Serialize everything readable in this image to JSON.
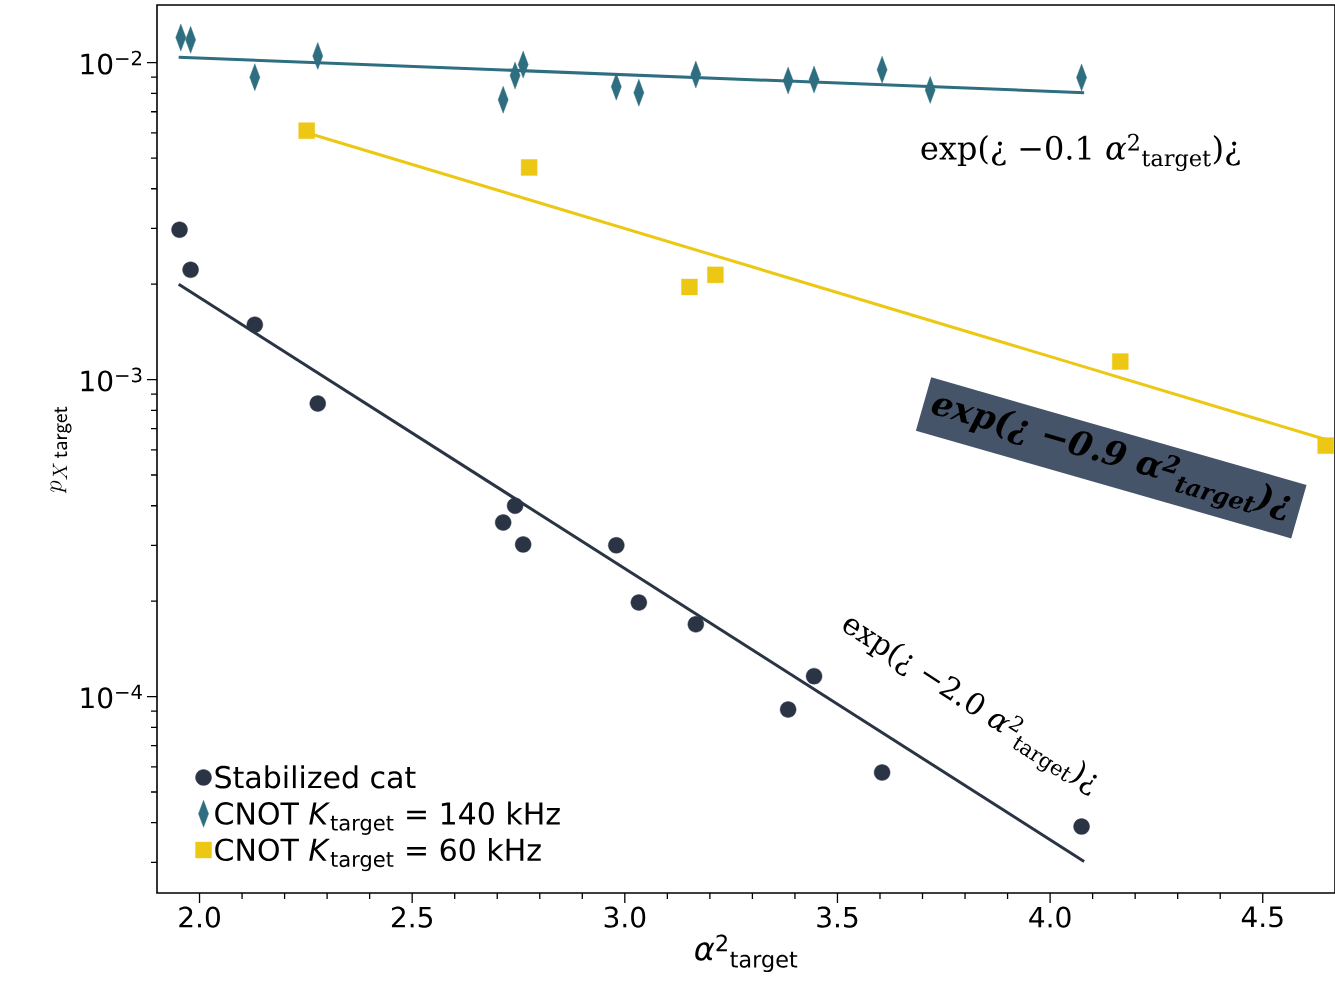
{
  "chart_data": {
    "type": "scatter",
    "xlabel": "*α*$^{2}$$_{target}$",
    "ylabel": "p_{X\\,\\mathsf{target}}",
    "log": "y",
    "legend": "bottom left",
    "xlim": [
      1.9,
      4.67
    ],
    "ylim": [
      2.4e-05,
      0.0152
    ],
    "xticks": [
      {
        "value": 2.0,
        "label": "2.0"
      },
      {
        "value": 2.5,
        "label": "2.5"
      },
      {
        "value": 3.0,
        "label": "3.0"
      },
      {
        "value": 3.5,
        "label": "3.5"
      },
      {
        "value": 4.0,
        "label": "4.0"
      },
      {
        "value": 4.5,
        "label": "4.5"
      }
    ],
    "yticks": [
      {
        "value": 0.0001,
        "label": "10$^{−4}$"
      },
      {
        "value": 0.001,
        "label": "10$^{−3}$"
      },
      {
        "value": 0.01,
        "label": "10$^{−2}$"
      }
    ],
    "series": [
      {
        "name": "Stabilized cat",
        "marker": "circle",
        "color": "#2b3445",
        "x": [
          1.953,
          1.979,
          2.13,
          2.278,
          2.714,
          2.742,
          2.761,
          2.98,
          3.033,
          3.167,
          3.384,
          3.445,
          3.605,
          4.074
        ],
        "values": [
          0.00297,
          0.00222,
          0.00149,
          0.00084,
          0.000354,
          0.0004,
          0.000302,
          0.0003,
          0.000198,
          0.000169,
          9.1e-05,
          0.000116,
          5.76e-05,
          3.89e-05
        ]
      },
      {
        "name": "CNOT *K*$_{target}$ = 140 kHz",
        "marker": "diamond",
        "color": "#2e6e80",
        "x": [
          1.956,
          1.979,
          2.13,
          2.278,
          2.714,
          2.742,
          2.761,
          2.98,
          3.033,
          3.167,
          3.384,
          3.445,
          3.605,
          3.718,
          4.074
        ],
        "values": [
          0.012,
          0.0118,
          0.009,
          0.0105,
          0.00764,
          0.0091,
          0.00986,
          0.0084,
          0.00804,
          0.00917,
          0.00878,
          0.00884,
          0.0095,
          0.0082,
          0.00897
        ]
      },
      {
        "name": "CNOT *K*$_{target}$ = 60 kHz",
        "marker": "square",
        "color": "#ecc814",
        "x": [
          2.252,
          2.775,
          3.152,
          3.213,
          4.165,
          4.648
        ],
        "values": [
          0.0061,
          0.00467,
          0.00196,
          0.00214,
          0.00114,
          0.000619
        ]
      },
      {
        "type": "line",
        "color": "#2b3445",
        "x": [
          1.951,
          4.08
        ],
        "values": [
          0.002,
          3.02e-05
        ]
      },
      {
        "type": "line",
        "color": "#2e6e80",
        "x": [
          1.951,
          4.08
        ],
        "values": [
          0.0104,
          0.00804
        ]
      },
      {
        "type": "line",
        "color": "#ecc814",
        "x": [
          2.252,
          4.648
        ],
        "values": [
          0.00601,
          0.000647
        ]
      }
    ],
    "annotations": [
      "exp(¿ −0.1 *α*$^{2}$$_{target}$)¿",
      "exp(¿ −0.9 *α*$^{2}$$_{target}$)¿",
      "exp(¿ −2.0 *α*$^{2}$$_{target}$)¿"
    ]
  }
}
